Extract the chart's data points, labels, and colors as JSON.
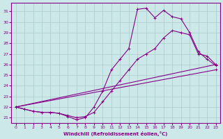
{
  "xlabel": "Windchill (Refroidissement éolien,°C)",
  "bg_color": "#cce8e8",
  "line_color": "#880088",
  "grid_color": "#aacccc",
  "x_ticks": [
    0,
    1,
    2,
    3,
    4,
    5,
    6,
    7,
    8,
    9,
    10,
    11,
    12,
    13,
    14,
    15,
    16,
    17,
    18,
    19,
    20,
    21,
    22,
    23
  ],
  "y_ticks": [
    21,
    22,
    23,
    24,
    25,
    26,
    27,
    28,
    29,
    30,
    31
  ],
  "ylim": [
    20.5,
    31.8
  ],
  "xlim": [
    -0.5,
    23.5
  ],
  "series": [
    {
      "x": [
        0,
        1,
        2,
        3,
        4,
        5,
        6,
        7,
        8,
        9,
        10,
        11,
        12,
        13,
        14,
        15,
        16,
        17,
        18,
        19,
        20,
        21,
        22,
        23
      ],
      "y": [
        22.0,
        21.8,
        21.6,
        21.5,
        21.5,
        21.4,
        21.1,
        20.8,
        21.0,
        22.0,
        23.5,
        25.5,
        26.5,
        27.5,
        31.2,
        31.3,
        30.4,
        31.1,
        30.5,
        30.3,
        29.0,
        27.2,
        26.5,
        25.9
      ]
    },
    {
      "x": [
        0,
        1,
        2,
        3,
        4,
        5,
        6,
        7,
        8,
        9,
        10,
        11,
        12,
        13,
        14,
        15,
        16,
        17,
        18,
        19,
        20,
        21,
        22,
        23
      ],
      "y": [
        22.0,
        21.8,
        21.6,
        21.5,
        21.5,
        21.4,
        21.2,
        21.0,
        21.1,
        21.5,
        22.5,
        23.5,
        24.5,
        25.5,
        26.5,
        27.0,
        27.5,
        28.5,
        29.2,
        29.0,
        28.8,
        27.0,
        26.8,
        26.0
      ]
    },
    {
      "x": [
        0,
        23
      ],
      "y": [
        22.0,
        26.0
      ]
    },
    {
      "x": [
        0,
        23
      ],
      "y": [
        22.0,
        25.5
      ]
    }
  ]
}
